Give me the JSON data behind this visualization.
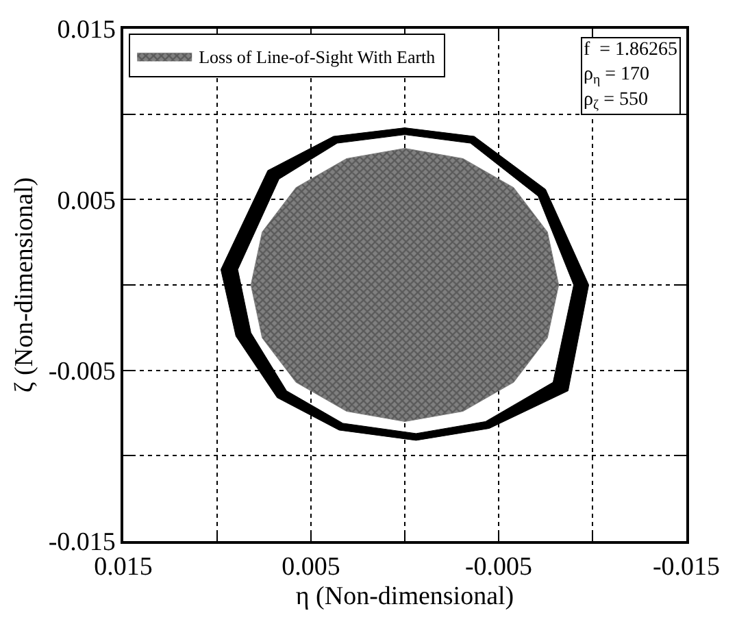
{
  "chart_data": {
    "type": "area",
    "xlabel": "η (Non-dimensional)",
    "ylabel": "ζ (Non-dimensional)",
    "xlim": [
      0.015,
      -0.015
    ],
    "ylim": [
      -0.015,
      0.015
    ],
    "xticks": [
      0.015,
      {
        "value": 0.01,
        "label": null
      },
      0.005,
      {
        "value": 0,
        "label": null
      },
      -0.005,
      {
        "value": -0.01,
        "label": null
      },
      -0.015
    ],
    "yticks": [
      -0.015,
      {
        "value": -0.01,
        "label": null
      },
      -0.005,
      {
        "value": 0,
        "label": null
      },
      0.005,
      {
        "value": 0.01,
        "label": null
      },
      0.015
    ],
    "grid": true,
    "legend": "top left",
    "annotations": [
      "f  = 1.86265\nρ$_{η}$ = 170\nρ$_{ζ}$ = 550"
    ],
    "series": [
      {
        "name": "Loss of Line-of-Sight With Earth",
        "color": "#808080",
        "x": [
          0.0082,
          0.0076,
          0.0058,
          0.0031,
          0,
          -0.0031,
          -0.0058,
          -0.0076,
          -0.0082,
          -0.0076,
          -0.0058,
          -0.0031,
          0,
          0.0031,
          0.0058,
          0.0076,
          0.0082
        ],
        "values": [
          0,
          0.0031,
          0.0057,
          0.0074,
          0.008,
          0.0074,
          0.0057,
          0.0031,
          0,
          -0.0031,
          -0.0057,
          -0.0074,
          -0.008,
          -0.0074,
          -0.0057,
          -0.0031,
          0
        ]
      },
      {
        "color": "#000000",
        "x": [
          0,
          -0.0037,
          -0.0075,
          -0.0098,
          -0.0087,
          -0.0045,
          -0.0006,
          0.0035,
          0.0068,
          0.009,
          0.0098,
          0.0073,
          0.0038,
          0,
          0,
          0.0036,
          0.0067,
          0.0089,
          0.0082,
          0.0063,
          0.0033,
          -0.0006,
          -0.0043,
          -0.0079,
          -0.009,
          -0.0071,
          -0.0035,
          0
        ],
        "values": [
          0.0092,
          0.0087,
          0.0056,
          0,
          -0.0062,
          -0.0084,
          -0.0091,
          -0.0085,
          -0.0066,
          -0.003,
          0.0009,
          0.0067,
          0.0087,
          0.0092,
          0.0088,
          0.0083,
          0.0062,
          0.0009,
          -0.0028,
          -0.0062,
          -0.0081,
          -0.0087,
          -0.008,
          -0.0057,
          0,
          0.0052,
          0.0083,
          0.0088
        ]
      }
    ]
  }
}
